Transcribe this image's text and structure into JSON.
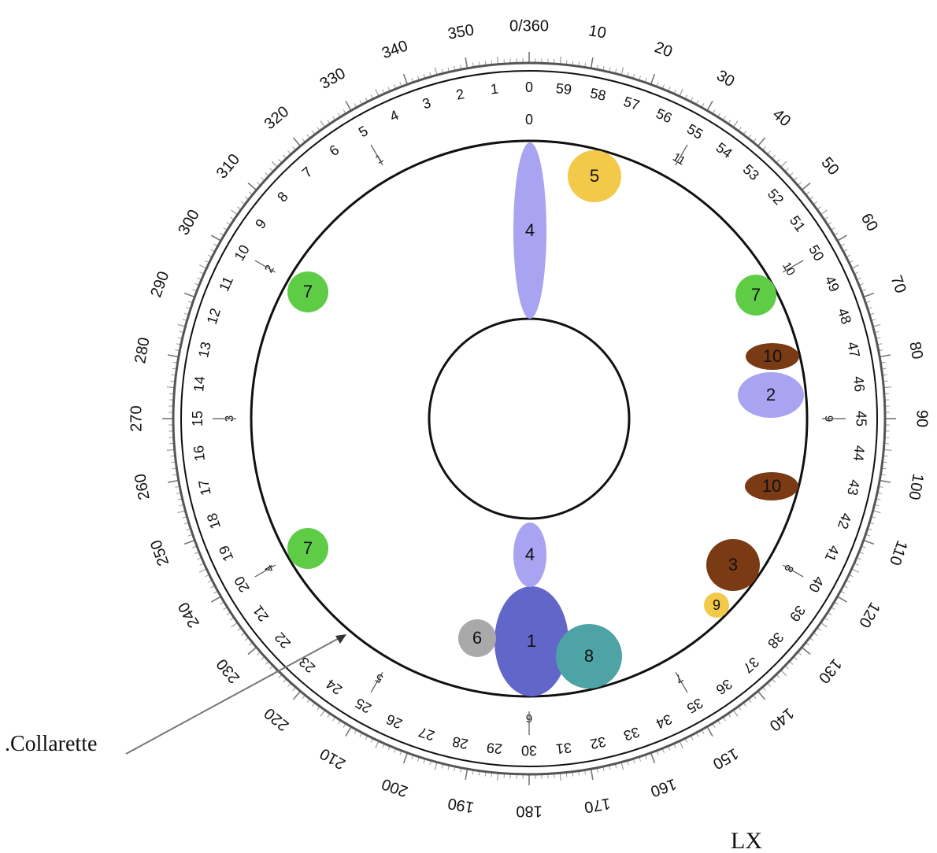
{
  "diagram": {
    "degree_labels": [
      "0/360",
      "10",
      "20",
      "30",
      "40",
      "50",
      "60",
      "70",
      "80",
      "90",
      "100",
      "110",
      "120",
      "130",
      "140",
      "150",
      "160",
      "170",
      "180",
      "190",
      "200",
      "210",
      "220",
      "230",
      "240",
      "250",
      "260",
      "270",
      "280",
      "290",
      "300",
      "310",
      "320",
      "330",
      "340",
      "350"
    ],
    "minute_labels": [
      "0",
      "59",
      "58",
      "57",
      "56",
      "55",
      "54",
      "53",
      "52",
      "51",
      "50",
      "49",
      "48",
      "47",
      "46",
      "45",
      "44",
      "43",
      "42",
      "41",
      "40",
      "39",
      "38",
      "37",
      "36",
      "35",
      "34",
      "33",
      "32",
      "31",
      "30",
      "29",
      "28",
      "27",
      "26",
      "25",
      "24",
      "23",
      "22",
      "21",
      "20",
      "19",
      "18",
      "17",
      "16",
      "15",
      "14",
      "13",
      "12",
      "11",
      "10",
      "9",
      "8",
      "7",
      "6",
      "5",
      "4",
      "3",
      "2",
      "1"
    ],
    "hour_labels": [
      "0",
      "1",
      "2",
      "3",
      "4",
      "5",
      "6",
      "7",
      "8",
      "9",
      "10",
      "11"
    ],
    "top_zero_label": "0",
    "markers": [
      {
        "label": "1",
        "color": "#6366c9"
      },
      {
        "label": "2",
        "color": "#a8a4f2"
      },
      {
        "label": "3",
        "color": "#7a3a14"
      },
      {
        "label": "4",
        "color": "#a8a4f2"
      },
      {
        "label": "4",
        "color": "#a8a4f2"
      },
      {
        "label": "5",
        "color": "#f3c94a"
      },
      {
        "label": "6",
        "color": "#a9a9a9"
      },
      {
        "label": "7",
        "color": "#5fcc46"
      },
      {
        "label": "7",
        "color": "#5fcc46"
      },
      {
        "label": "7",
        "color": "#5fcc46"
      },
      {
        "label": "8",
        "color": "#4ea3a6"
      },
      {
        "label": "9",
        "color": "#f3c94a"
      },
      {
        "label": "10",
        "color": "#7a3a14"
      },
      {
        "label": "10",
        "color": "#7a3a14"
      }
    ],
    "callout_label": ".Collarette",
    "corner_label": "LX"
  }
}
